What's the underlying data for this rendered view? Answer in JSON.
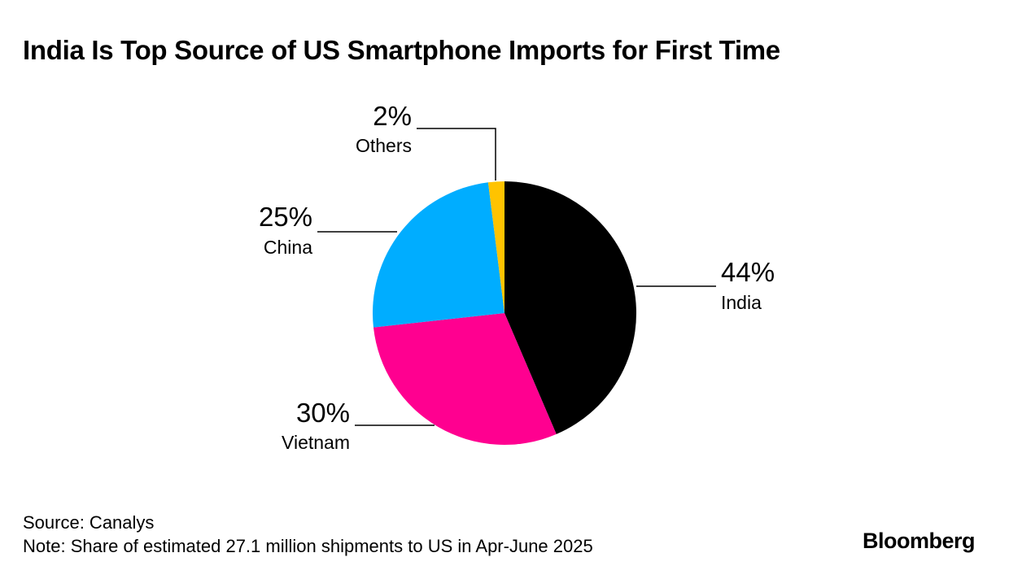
{
  "title": "India Is Top Source of US Smartphone Imports for First Time",
  "chart_data": {
    "type": "pie",
    "title": "India Is Top Source of US Smartphone Imports for First Time",
    "slices": [
      {
        "label": "India",
        "value_label": "44%",
        "value": 44,
        "color": "#000000"
      },
      {
        "label": "Vietnam",
        "value_label": "30%",
        "value": 30,
        "color": "#ff0090"
      },
      {
        "label": "China",
        "value_label": "25%",
        "value": 25,
        "color": "#00adff"
      },
      {
        "label": "Others",
        "value_label": "2%",
        "value": 2,
        "color": "#ffc300"
      }
    ]
  },
  "footer": {
    "source": "Source: Canalys",
    "note": "Note: Share of estimated 27.1 million shipments to US in Apr-June 2025"
  },
  "brand": "Bloomberg"
}
